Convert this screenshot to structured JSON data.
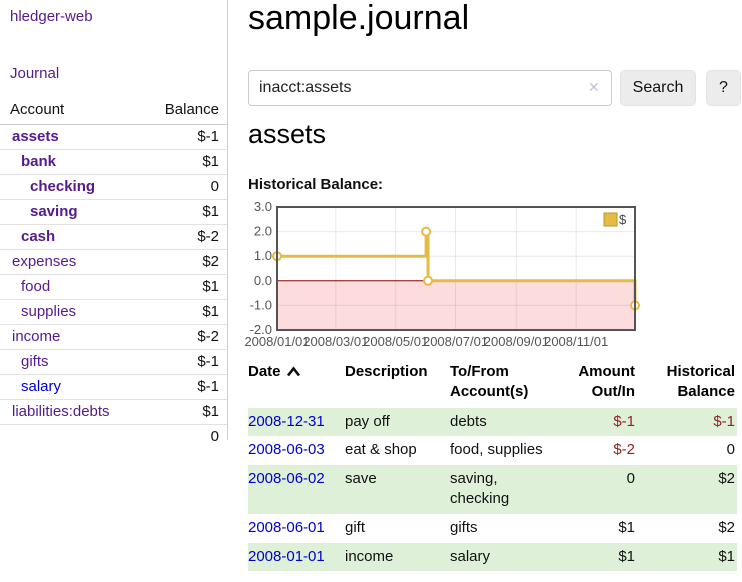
{
  "app": {
    "name": "hledger-web",
    "nav_journal": "Journal"
  },
  "theme": {
    "link-purple": "#551a8b",
    "link-blue": "#0000cc",
    "neg-strong": "#7a1216",
    "neg-soft": "#b27070",
    "neg-table": "#8e2323",
    "row-green": "#dff0d8",
    "button-bg": "#ececec"
  },
  "sidebar": {
    "header": {
      "account": "Account",
      "balance": "Balance"
    },
    "accounts": [
      {
        "name": "assets",
        "depth": 1,
        "bold": true,
        "balance": "$-1"
      },
      {
        "name": "bank",
        "depth": 2,
        "bold": true,
        "balance": "$1"
      },
      {
        "name": "checking",
        "depth": 3,
        "bold": true,
        "balance": "0"
      },
      {
        "name": "saving",
        "depth": 3,
        "bold": true,
        "balance": "$1"
      },
      {
        "name": "cash",
        "depth": 2,
        "bold": true,
        "balance": "$-2"
      },
      {
        "name": "expenses",
        "depth": 1,
        "bold": false,
        "balance": "$2"
      },
      {
        "name": "food",
        "depth": 2,
        "bold": false,
        "balance": "$1"
      },
      {
        "name": "supplies",
        "depth": 2,
        "bold": false,
        "balance": "$1"
      },
      {
        "name": "income",
        "depth": 1,
        "bold": false,
        "balance": "$-2"
      },
      {
        "name": "gifts",
        "depth": 2,
        "bold": false,
        "balance": "$-1"
      },
      {
        "name": "salary",
        "depth": 2,
        "bold": false,
        "balance": "$-1",
        "unvisited": true
      },
      {
        "name": "liabilities:debts",
        "depth": 1,
        "bold": false,
        "balance": "$1"
      }
    ],
    "total": "0"
  },
  "header": {
    "title": "sample.journal"
  },
  "search": {
    "value": "inacct:assets",
    "clear_icon": "✕",
    "button": "Search",
    "help": "?"
  },
  "account_page": {
    "title": "assets",
    "chart_label": "Historical Balance:"
  },
  "chart_data": {
    "type": "line",
    "title": "Historical Balance",
    "series": [
      {
        "name": "$",
        "step": true,
        "points": [
          [
            "2008-01-01",
            1
          ],
          [
            "2008-06-01",
            2
          ],
          [
            "2008-06-03",
            0
          ],
          [
            "2008-12-31",
            -1
          ]
        ]
      }
    ],
    "x_range": [
      "2008-01-01",
      "2008-12-31"
    ],
    "ylim": [
      -2,
      3
    ],
    "yticks": [
      3.0,
      2.0,
      1.0,
      0.0,
      -1.0,
      -2.0
    ],
    "xticks": [
      {
        "date": "2008-01-01",
        "label": "2008/01/01"
      },
      {
        "date": "2008-03-01",
        "label": "2008/03/01"
      },
      {
        "date": "2008-05-01",
        "label": "2008/05/01"
      },
      {
        "date": "2008-07-01",
        "label": "2008/07/01"
      },
      {
        "date": "2008-09-01",
        "label": "2008/09/01"
      },
      {
        "date": "2008-11-01",
        "label": "2008/11/01"
      }
    ],
    "legend_position": "top-right",
    "grid": true,
    "colors": {
      "series": "#e6bb45",
      "negative_region": "#fcdcdc",
      "zero_line": "#8b0000",
      "border": "#545454"
    }
  },
  "register": {
    "columns": [
      "Date",
      "Description",
      "To/From\nAccount(s)",
      "Amount\nOut/In",
      "Historical\nBalance"
    ],
    "rows": [
      {
        "date": "2008-12-31",
        "description": "pay off",
        "accounts": "debts",
        "amount": "$-1",
        "balance": "$-1"
      },
      {
        "date": "2008-06-03",
        "description": "eat & shop",
        "accounts": "food, supplies",
        "amount": "$-2",
        "balance": "0"
      },
      {
        "date": "2008-06-02",
        "description": "save",
        "accounts": "saving,\nchecking",
        "amount": "0",
        "balance": "$2"
      },
      {
        "date": "2008-06-01",
        "description": "gift",
        "accounts": "gifts",
        "amount": "$1",
        "balance": "$2"
      },
      {
        "date": "2008-01-01",
        "description": "income",
        "accounts": "salary",
        "amount": "$1",
        "balance": "$1"
      }
    ]
  }
}
